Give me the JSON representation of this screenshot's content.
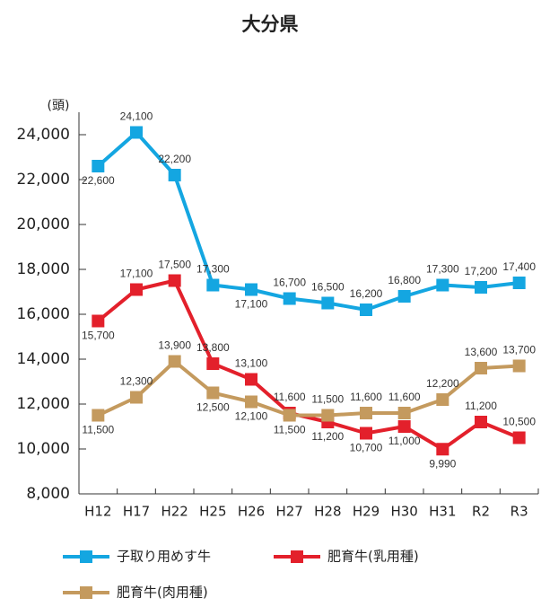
{
  "chart_data": {
    "type": "line",
    "title": "大分県",
    "y_label": "(頭)",
    "categories": [
      "H12",
      "H17",
      "H22",
      "H25",
      "H26",
      "H27",
      "H28",
      "H29",
      "H30",
      "H31",
      "R2",
      "R3"
    ],
    "series": [
      {
        "name": "子取り用めす牛",
        "color": "#14a6e1",
        "values": [
          22600,
          24100,
          22200,
          17300,
          17100,
          16700,
          16500,
          16200,
          16800,
          17300,
          17200,
          17400
        ],
        "value_labels": [
          "22,600",
          "24,100",
          "22,200",
          "17,300",
          "17,100",
          "16,700",
          "16,500",
          "16,200",
          "16,800",
          "17,300",
          "17,200",
          "17,400"
        ]
      },
      {
        "name": "肥育牛(乳用種)",
        "color": "#e3202b",
        "values": [
          15700,
          17100,
          17500,
          13800,
          13100,
          11600,
          11200,
          10700,
          11000,
          9990,
          11200,
          10500
        ],
        "value_labels": [
          "15,700",
          "17,100",
          "17,500",
          "13,800",
          "13,100",
          "11,600",
          "11,200",
          "10,700",
          "11,000",
          "9,990",
          "11,200",
          "10,500"
        ]
      },
      {
        "name": "肥育牛(肉用種)",
        "color": "#c49a5e",
        "values": [
          11500,
          12300,
          13900,
          12500,
          12100,
          11500,
          11500,
          11600,
          11600,
          12200,
          13600,
          13700
        ],
        "value_labels": [
          "11,500",
          "12,300",
          "13,900",
          "12,500",
          "12,100",
          "11,500",
          "11,500",
          "11,600",
          "11,600",
          "12,200",
          "13,600",
          "13,700"
        ]
      }
    ],
    "ylim": [
      8000,
      25000
    ],
    "yticks": [
      {
        "value": 8000,
        "label": "8,000"
      },
      {
        "value": 10000,
        "label": "10,000"
      },
      {
        "value": 12000,
        "label": "12,000"
      },
      {
        "value": 14000,
        "label": "14,000"
      },
      {
        "value": 16000,
        "label": "16,000"
      },
      {
        "value": 18000,
        "label": "18,000"
      },
      {
        "value": 20000,
        "label": "20,000"
      },
      {
        "value": 22000,
        "label": "22,000"
      },
      {
        "value": 24000,
        "label": "24,000"
      }
    ],
    "grid": false
  }
}
